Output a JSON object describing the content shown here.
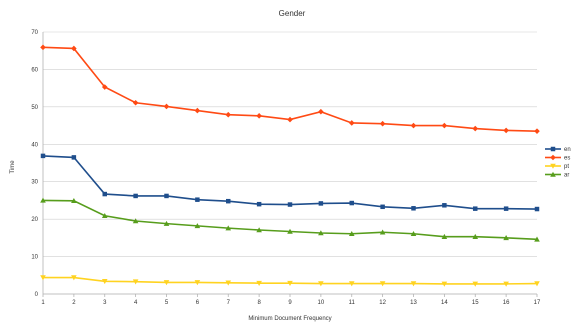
{
  "chart_data": {
    "type": "line",
    "title": "Gender",
    "xlabel": "Minimum Document Frequency",
    "ylabel": "Time",
    "x": [
      1,
      2,
      3,
      4,
      5,
      6,
      7,
      8,
      9,
      10,
      11,
      12,
      13,
      14,
      15,
      16,
      17
    ],
    "ylim": [
      0,
      70
    ],
    "yticks": [
      0,
      10,
      20,
      30,
      40,
      50,
      60,
      70
    ],
    "grid": true,
    "legend_position": "right",
    "series": [
      {
        "name": "en",
        "color": "#1f4e8c",
        "marker": "square",
        "values": [
          36.9,
          36.5,
          26.7,
          26.2,
          26.2,
          25.2,
          24.8,
          24.0,
          23.9,
          24.2,
          24.3,
          23.3,
          22.9,
          23.7,
          22.8,
          22.8,
          22.7
        ]
      },
      {
        "name": "es",
        "color": "#ff4a14",
        "marker": "diamond",
        "values": [
          65.9,
          65.6,
          55.3,
          51.1,
          50.1,
          49.0,
          47.9,
          47.6,
          46.6,
          48.7,
          45.7,
          45.5,
          45.0,
          45.0,
          44.2,
          43.7,
          43.5
        ]
      },
      {
        "name": "pt",
        "color": "#ffd320",
        "marker": "triangle-down",
        "values": [
          4.4,
          4.4,
          3.4,
          3.3,
          3.1,
          3.1,
          3.0,
          2.9,
          2.9,
          2.8,
          2.8,
          2.8,
          2.8,
          2.7,
          2.7,
          2.7,
          2.8
        ]
      },
      {
        "name": "ar",
        "color": "#579d1c",
        "marker": "triangle-up",
        "values": [
          25.0,
          24.9,
          20.9,
          19.5,
          18.8,
          18.2,
          17.6,
          17.1,
          16.7,
          16.3,
          16.1,
          16.5,
          16.1,
          15.3,
          15.3,
          15.0,
          14.6
        ]
      }
    ]
  }
}
